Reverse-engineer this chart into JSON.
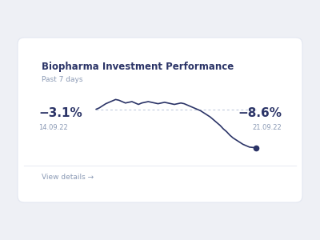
{
  "title": "Biopharma Investment Performance",
  "subtitle": "Past 7 days",
  "start_label": "−3.1%",
  "end_label": "−8.6%",
  "start_date": "14.09.22",
  "end_date": "21.09.22",
  "view_details": "View details →",
  "bg_color": "#eef0f5",
  "card_color": "#ffffff",
  "title_color": "#2b3467",
  "subtitle_color": "#8b9ab5",
  "label_color": "#2b3467",
  "date_color": "#8b9ab5",
  "link_color": "#8b9ab5",
  "line_color": "#2b3467",
  "dot_color": "#2b3467",
  "dotted_line_color": "#b8c4d8",
  "divider_color": "#eaecf4",
  "border_color": "#e2e6f0",
  "line_data": [
    -3.1,
    -2.9,
    -2.6,
    -2.3,
    -2.1,
    -1.9,
    -1.7,
    -1.8,
    -2.0,
    -2.2,
    -2.1,
    -2.0,
    -2.2,
    -2.4,
    -2.2,
    -2.1,
    -2.0,
    -2.1,
    -2.2,
    -2.3,
    -2.2,
    -2.1,
    -2.2,
    -2.3,
    -2.4,
    -2.3,
    -2.2,
    -2.3,
    -2.5,
    -2.7,
    -2.9,
    -3.1,
    -3.3,
    -3.6,
    -3.9,
    -4.2,
    -4.6,
    -5.0,
    -5.4,
    -5.9,
    -6.3,
    -6.8,
    -7.2,
    -7.5,
    -7.8,
    -8.1,
    -8.3,
    -8.5,
    -8.55,
    -8.6
  ]
}
